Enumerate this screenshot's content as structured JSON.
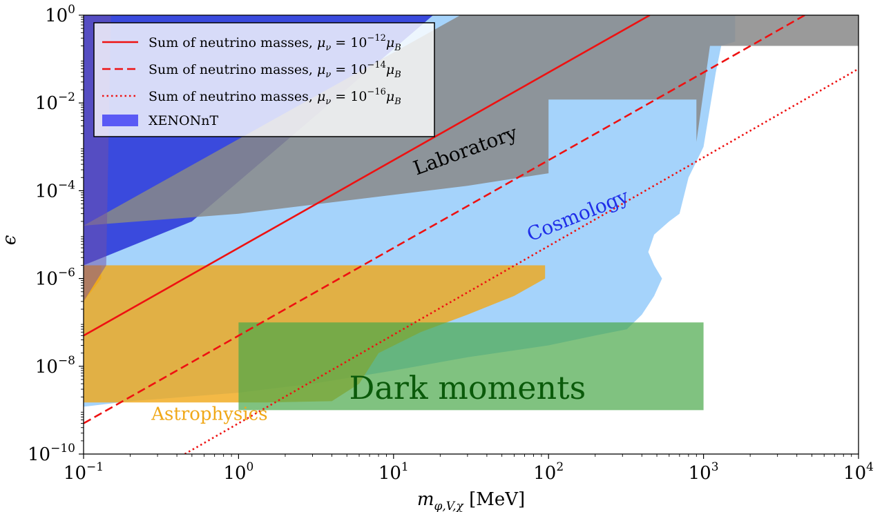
{
  "chart_data": {
    "type": "area",
    "title": "",
    "xlabel": "m_{φ,V,χ} [MeV]",
    "ylabel": "ϵ",
    "xscale": "log",
    "yscale": "log",
    "xlim": [
      0.1,
      10000
    ],
    "ylim": [
      1e-10,
      1
    ],
    "grid": false,
    "legend_position": "top-left",
    "x_ticks": [
      {
        "value": 0.1,
        "base": "10",
        "exp": "−1"
      },
      {
        "value": 1,
        "base": "10",
        "exp": "0"
      },
      {
        "value": 10,
        "base": "10",
        "exp": "1"
      },
      {
        "value": 100,
        "base": "10",
        "exp": "2"
      },
      {
        "value": 1000,
        "base": "10",
        "exp": "3"
      },
      {
        "value": 10000,
        "base": "10",
        "exp": "4"
      }
    ],
    "y_ticks": [
      {
        "value": 1e-10,
        "base": "10",
        "exp": "−10"
      },
      {
        "value": 1e-08,
        "base": "10",
        "exp": "−8"
      },
      {
        "value": 1e-06,
        "base": "10",
        "exp": "−6"
      },
      {
        "value": 0.0001,
        "base": "10",
        "exp": "−4"
      },
      {
        "value": 0.01,
        "base": "10",
        "exp": "−2"
      },
      {
        "value": 1,
        "base": "10",
        "exp": "0"
      }
    ],
    "regions": [
      {
        "name": "Cosmology",
        "color": "#8ec8fa",
        "opacity": 0.8,
        "points": [
          [
            0.1,
            1.2e-09
          ],
          [
            0.2,
            1.6e-09
          ],
          [
            1,
            2.5e-09
          ],
          [
            3,
            4e-09
          ],
          [
            10,
            8e-09
          ],
          [
            30,
            1.6e-08
          ],
          [
            100,
            3e-08
          ],
          [
            200,
            5e-08
          ],
          [
            320,
            7e-08
          ],
          [
            400,
            1.5e-07
          ],
          [
            480,
            4e-07
          ],
          [
            540,
            1e-06
          ],
          [
            480,
            2e-06
          ],
          [
            440,
            4e-06
          ],
          [
            480,
            1e-05
          ],
          [
            600,
            2e-05
          ],
          [
            700,
            3e-05
          ],
          [
            800,
            0.0002
          ],
          [
            1000,
            0.001
          ],
          [
            1200,
            0.05
          ],
          [
            1300,
            0.2
          ],
          [
            1600,
            0.25
          ],
          [
            1600,
            1
          ],
          [
            0.1,
            1
          ]
        ]
      },
      {
        "name": "XENONnT",
        "color": "#0000cc",
        "opacity": 0.65,
        "points": [
          [
            0.1,
            1
          ],
          [
            18,
            1
          ],
          [
            0.5,
            2e-05
          ],
          [
            0.1,
            2e-06
          ]
        ]
      },
      {
        "name": "Laboratory",
        "color": "#888888",
        "opacity": 0.85,
        "points": [
          [
            0.1,
            1.6e-05
          ],
          [
            1,
            3e-05
          ],
          [
            30,
            0.00013
          ],
          [
            100,
            0.00025
          ],
          [
            100,
            0.012
          ],
          [
            900,
            0.012
          ],
          [
            900,
            0.0013
          ],
          [
            1100,
            0.2
          ],
          [
            10000,
            0.2
          ],
          [
            10000,
            1
          ],
          [
            27,
            1
          ],
          [
            0.1,
            1.6e-05
          ]
        ]
      },
      {
        "name": "Astrophysics",
        "color": "#f0a818",
        "opacity": 0.8,
        "points": [
          [
            0.1,
            2e-06
          ],
          [
            95,
            2e-06
          ],
          [
            95,
            1e-06
          ],
          [
            60,
            4e-07
          ],
          [
            30,
            1.5e-07
          ],
          [
            15,
            6e-08
          ],
          [
            8,
            2e-08
          ],
          [
            6,
            4e-09
          ],
          [
            4,
            1.6e-09
          ],
          [
            1.5,
            1.5e-09
          ],
          [
            0.1,
            1.5e-09
          ]
        ]
      },
      {
        "name": "Astrophysics-edge",
        "color": "#f0a818",
        "opacity": 0.85,
        "points": [
          [
            0.1,
            3e-07
          ],
          [
            0.13,
            1e-06
          ],
          [
            0.13,
            2e-06
          ],
          [
            0.1,
            2e-06
          ]
        ]
      },
      {
        "name": "Dark moments",
        "color": "#4aa84a",
        "opacity": 0.7,
        "points": [
          [
            1,
            1e-07
          ],
          [
            1000,
            1e-07
          ],
          [
            1000,
            1e-09
          ],
          [
            1,
            1e-09
          ]
        ]
      },
      {
        "name": "left-strip",
        "color": "#7050a8",
        "opacity": 0.5,
        "points": [
          [
            0.1,
            1
          ],
          [
            0.15,
            1
          ],
          [
            0.14,
            2e-06
          ],
          [
            0.1,
            3e-07
          ]
        ]
      }
    ],
    "lines": [
      {
        "name": "Sum of neutrino masses, μ_ν = 10^{−12}μ_B",
        "label_main": "Sum of neutrino masses, ",
        "label_mu": "μ",
        "label_nu": "ν",
        "label_eq": " = 10",
        "label_exp": "−12",
        "label_muB": "μ",
        "label_B": "B",
        "style": "solid",
        "color": "#ee1111",
        "points": [
          [
            0.1,
            5e-08
          ],
          [
            450,
            1
          ]
        ]
      },
      {
        "name": "Sum of neutrino masses, μ_ν = 10^{−14}μ_B",
        "label_main": "Sum of neutrino masses, ",
        "label_mu": "μ",
        "label_nu": "ν",
        "label_eq": " = 10",
        "label_exp": "−14",
        "label_muB": "μ",
        "label_B": "B",
        "style": "dashed",
        "color": "#ee1111",
        "points": [
          [
            0.1,
            5e-10
          ],
          [
            4500,
            1
          ]
        ]
      },
      {
        "name": "Sum of neutrino masses, μ_ν = 10^{−16}μ_B",
        "label_main": "Sum of neutrino masses, ",
        "label_mu": "μ",
        "label_nu": "ν",
        "label_eq": " = 10",
        "label_exp": "−16",
        "label_muB": "μ",
        "label_B": "B",
        "style": "dotted",
        "color": "#ee1111",
        "points": [
          [
            0.45,
            1e-10
          ],
          [
            10000,
            0.06
          ]
        ]
      }
    ],
    "legend": [
      {
        "type": "line",
        "style": "solid",
        "color": "#ee1111",
        "line_ref": 0
      },
      {
        "type": "line",
        "style": "dashed",
        "color": "#ee1111",
        "line_ref": 1
      },
      {
        "type": "line",
        "style": "dotted",
        "color": "#ee1111",
        "line_ref": 2
      },
      {
        "type": "patch",
        "color": "#5a5af5",
        "label": "XENONnT"
      }
    ],
    "annotations": [
      {
        "text": "Laboratory",
        "x": 30,
        "y": 0.0006,
        "rotation": -20,
        "color": "#000000",
        "size": 28
      },
      {
        "text": "Cosmology",
        "x": 160,
        "y": 2e-05,
        "rotation": -22,
        "color": "#1f2ee8",
        "size": 28
      },
      {
        "text": "Astrophysics",
        "x": 0.65,
        "y": 6e-10,
        "rotation": 0,
        "color": "#f0a818",
        "size": 26
      },
      {
        "text": "Dark moments",
        "x": 30,
        "y": 1.8e-09,
        "rotation": 0,
        "color": "#0a5a0a",
        "size": 46
      }
    ]
  }
}
